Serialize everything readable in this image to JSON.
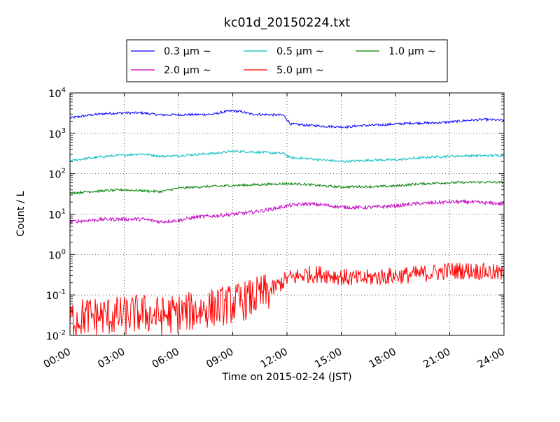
{
  "chart_data": {
    "type": "line",
    "title": "kc01d_20150224.txt",
    "xlabel": "Time on 2015-02-24 (JST)",
    "ylabel": "Count / L",
    "x_ticks": [
      "00:00",
      "03:00",
      "06:00",
      "09:00",
      "12:00",
      "15:00",
      "18:00",
      "21:00",
      "24:00"
    ],
    "xlim_hours": [
      0,
      24
    ],
    "yscale": "log",
    "ylim": [
      0.01,
      10000
    ],
    "y_ticks": [
      {
        "value": 0.01,
        "base": "10",
        "exp": "-2"
      },
      {
        "value": 0.1,
        "base": "10",
        "exp": "-1"
      },
      {
        "value": 1,
        "base": "10",
        "exp": "0"
      },
      {
        "value": 10,
        "base": "10",
        "exp": "1"
      },
      {
        "value": 100,
        "base": "10",
        "exp": "2"
      },
      {
        "value": 1000,
        "base": "10",
        "exp": "3"
      },
      {
        "value": 10000,
        "base": "10",
        "exp": "4"
      }
    ],
    "grid": true,
    "legend_position": "top-center",
    "series": [
      {
        "name": "0.3 μm ~",
        "color": "#0000ff",
        "x": [
          0,
          1,
          2,
          3,
          4,
          5,
          6,
          7,
          8,
          8.5,
          9,
          9.5,
          10,
          11,
          11.8,
          12.2,
          13,
          14,
          15,
          15.5,
          16,
          17,
          18,
          19,
          20,
          21,
          22,
          23,
          24
        ],
        "y": [
          2400,
          2800,
          3100,
          3200,
          3200,
          2850,
          2900,
          2900,
          3000,
          3400,
          3600,
          3400,
          3000,
          2900,
          2800,
          1700,
          1600,
          1500,
          1450,
          1450,
          1550,
          1600,
          1700,
          1800,
          1800,
          1900,
          2100,
          2200,
          2100
        ]
      },
      {
        "name": "0.5 μm ~",
        "color": "#00bfbf",
        "x": [
          0,
          1,
          2,
          3,
          4,
          5,
          6,
          7,
          8,
          9,
          10,
          11,
          11.8,
          12.2,
          13,
          14,
          15,
          16,
          17,
          18,
          19,
          20,
          21,
          22,
          23,
          24
        ],
        "y": [
          210,
          240,
          270,
          290,
          310,
          270,
          280,
          300,
          320,
          360,
          350,
          330,
          320,
          250,
          240,
          220,
          200,
          210,
          220,
          220,
          240,
          260,
          270,
          280,
          280,
          285
        ]
      },
      {
        "name": "1.0 μm ~",
        "color": "#008000",
        "x": [
          0,
          1,
          2,
          3,
          4,
          5,
          6,
          7,
          8,
          9,
          10,
          11,
          12,
          13,
          14,
          15,
          16,
          17,
          18,
          19,
          20,
          21,
          22,
          23,
          24
        ],
        "y": [
          33,
          36,
          38,
          40,
          38,
          36,
          44,
          47,
          49,
          51,
          53,
          55,
          57,
          55,
          50,
          47,
          48,
          48,
          50,
          55,
          58,
          60,
          61,
          62,
          61
        ]
      },
      {
        "name": "2.0 μm ~",
        "color": "#bf00bf",
        "x": [
          0,
          1,
          2,
          3,
          4,
          5,
          6,
          7,
          8,
          9,
          10,
          11,
          12,
          13,
          14,
          15,
          16,
          17,
          18,
          19,
          20,
          21,
          22,
          23,
          24
        ],
        "y": [
          6.5,
          7,
          7.5,
          7.5,
          7.5,
          6.5,
          7,
          8.5,
          9,
          10,
          11,
          13,
          16,
          18,
          17,
          15,
          14.5,
          15,
          16,
          18,
          19,
          20,
          20,
          19,
          18
        ]
      },
      {
        "name": "5.0 μm ~",
        "color": "#ff0000",
        "x": [
          0,
          1,
          2,
          3,
          4,
          5,
          6,
          7,
          8,
          9,
          10,
          11,
          12,
          13,
          14,
          15,
          16,
          17,
          18,
          19,
          20,
          21,
          22,
          23,
          24
        ],
        "y": [
          0.025,
          0.03,
          0.03,
          0.03,
          0.035,
          0.03,
          0.035,
          0.04,
          0.05,
          0.06,
          0.08,
          0.12,
          0.25,
          0.32,
          0.33,
          0.28,
          0.25,
          0.28,
          0.3,
          0.32,
          0.35,
          0.4,
          0.4,
          0.38,
          0.32
        ]
      }
    ]
  }
}
